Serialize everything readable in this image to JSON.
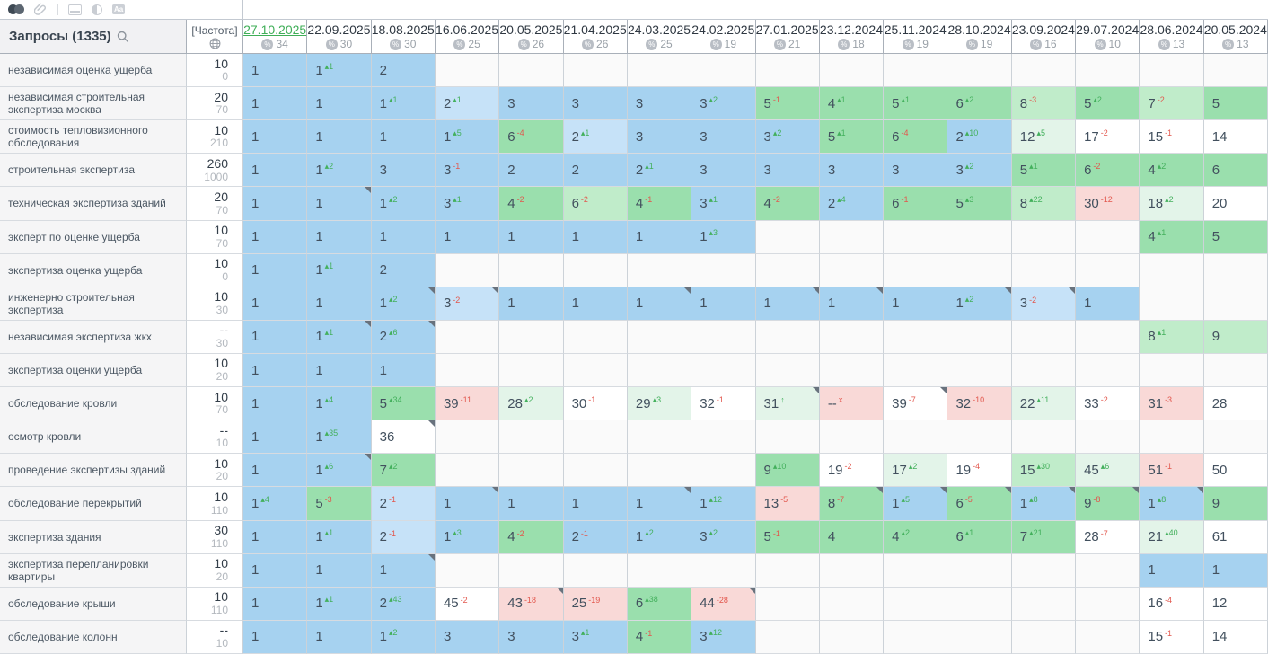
{
  "toolbar": {
    "icons": [
      "projects-toggle-icon",
      "attach-link-icon",
      "divider",
      "snapshot-icon",
      "contrast-icon",
      "font-size-icon"
    ]
  },
  "header": {
    "queries_label": "Запросы",
    "queries_count": "(1335)",
    "frequency_label": "[Частота]",
    "dates": [
      {
        "label": "27.10.2025",
        "percent": "34",
        "selected": true
      },
      {
        "label": "22.09.2025",
        "percent": "30"
      },
      {
        "label": "18.08.2025",
        "percent": "30"
      },
      {
        "label": "16.06.2025",
        "percent": "25"
      },
      {
        "label": "20.05.2025",
        "percent": "26"
      },
      {
        "label": "21.04.2025",
        "percent": "26"
      },
      {
        "label": "24.03.2025",
        "percent": "25"
      },
      {
        "label": "24.02.2025",
        "percent": "19"
      },
      {
        "label": "27.01.2025",
        "percent": "21"
      },
      {
        "label": "23.12.2024",
        "percent": "18"
      },
      {
        "label": "25.11.2024",
        "percent": "19"
      },
      {
        "label": "28.10.2024",
        "percent": "19"
      },
      {
        "label": "23.09.2024",
        "percent": "16"
      },
      {
        "label": "29.07.2024",
        "percent": "10"
      },
      {
        "label": "28.06.2024",
        "percent": "13"
      },
      {
        "label": "20.05.2024",
        "percent": "13"
      }
    ]
  },
  "colors": {
    "selected_date": "#3fae57",
    "delta_up": "#43b05c",
    "delta_down": "#e2574d",
    "cell_bg": {
      "b": "#a6d2f0",
      "bl": "#c6e2f8",
      "g": "#9adfad",
      "gl": "#c0ecca",
      "gx": "#e3f4e9",
      "w": "#ffffff",
      "p": "#f9d9d7",
      "e": "#fafafa"
    }
  },
  "rows": [
    {
      "keyword": "независимая оценка ущерба",
      "freq": [
        "10",
        "0"
      ],
      "cells": [
        [
          "1",
          null,
          "b"
        ],
        [
          "1",
          "+1",
          "b"
        ],
        [
          "2",
          null,
          "b"
        ],
        null,
        null,
        null,
        null,
        null,
        null,
        null,
        null,
        null,
        null,
        null,
        null,
        null
      ]
    },
    {
      "keyword": "независимая строительная экспертиза москва",
      "freq": [
        "20",
        "70"
      ],
      "cells": [
        [
          "1",
          null,
          "b"
        ],
        [
          "1",
          null,
          "b"
        ],
        [
          "1",
          "+1",
          "b"
        ],
        [
          "2",
          "+1",
          "bl"
        ],
        [
          "3",
          null,
          "b"
        ],
        [
          "3",
          null,
          "b"
        ],
        [
          "3",
          null,
          "b"
        ],
        [
          "3",
          "+2",
          "b"
        ],
        [
          "5",
          "-1",
          "g"
        ],
        [
          "4",
          "+1",
          "g"
        ],
        [
          "5",
          "+1",
          "g"
        ],
        [
          "6",
          "+2",
          "g"
        ],
        [
          "8",
          "-3",
          "gl"
        ],
        [
          "5",
          "+2",
          "g"
        ],
        [
          "7",
          "-2",
          "gl"
        ],
        [
          "5",
          null,
          "g"
        ]
      ]
    },
    {
      "keyword": "стоимость тепловизионного обследования",
      "freq": [
        "10",
        "210"
      ],
      "cells": [
        [
          "1",
          null,
          "b"
        ],
        [
          "1",
          null,
          "b"
        ],
        [
          "1",
          null,
          "b"
        ],
        [
          "1",
          "+5",
          "b"
        ],
        [
          "6",
          "-4",
          "g"
        ],
        [
          "2",
          "+1",
          "bl"
        ],
        [
          "3",
          null,
          "b"
        ],
        [
          "3",
          null,
          "b"
        ],
        [
          "3",
          "+2",
          "b"
        ],
        [
          "5",
          "+1",
          "g"
        ],
        [
          "6",
          "-4",
          "g"
        ],
        [
          "2",
          "+10",
          "b"
        ],
        [
          "12",
          "+5",
          "gx"
        ],
        [
          "17",
          "-2",
          "w"
        ],
        [
          "15",
          "-1",
          "w"
        ],
        [
          "14",
          null,
          "w"
        ]
      ]
    },
    {
      "keyword": "строительная экспертиза",
      "freq": [
        "260",
        "1000"
      ],
      "cells": [
        [
          "1",
          null,
          "b"
        ],
        [
          "1",
          "+2",
          "b"
        ],
        [
          "3",
          null,
          "b"
        ],
        [
          "3",
          "-1",
          "b"
        ],
        [
          "2",
          null,
          "b"
        ],
        [
          "2",
          null,
          "b"
        ],
        [
          "2",
          "+1",
          "b"
        ],
        [
          "3",
          null,
          "b"
        ],
        [
          "3",
          null,
          "b"
        ],
        [
          "3",
          null,
          "b"
        ],
        [
          "3",
          null,
          "b"
        ],
        [
          "3",
          "+2",
          "b"
        ],
        [
          "5",
          "+1",
          "g"
        ],
        [
          "6",
          "-2",
          "g"
        ],
        [
          "4",
          "+2",
          "g"
        ],
        [
          "6",
          null,
          "g"
        ]
      ]
    },
    {
      "keyword": "техническая экспертиза зданий",
      "freq": [
        "20",
        "70"
      ],
      "cells": [
        [
          "1",
          null,
          "b"
        ],
        [
          "1",
          null,
          "b",
          1
        ],
        [
          "1",
          "+2",
          "b"
        ],
        [
          "3",
          "+1",
          "b"
        ],
        [
          "4",
          "-2",
          "g"
        ],
        [
          "6",
          "-2",
          "gl"
        ],
        [
          "4",
          "-1",
          "g"
        ],
        [
          "3",
          "+1",
          "b"
        ],
        [
          "4",
          "-2",
          "g"
        ],
        [
          "2",
          "+4",
          "b"
        ],
        [
          "6",
          "-1",
          "g"
        ],
        [
          "5",
          "+3",
          "g"
        ],
        [
          "8",
          "+22",
          "gl"
        ],
        [
          "30",
          "-12",
          "p"
        ],
        [
          "18",
          "+2",
          "gx"
        ],
        [
          "20",
          null,
          "w"
        ]
      ]
    },
    {
      "keyword": "эксперт по оценке ущерба",
      "freq": [
        "10",
        "70"
      ],
      "cells": [
        [
          "1",
          null,
          "b"
        ],
        [
          "1",
          null,
          "b"
        ],
        [
          "1",
          null,
          "b"
        ],
        [
          "1",
          null,
          "b"
        ],
        [
          "1",
          null,
          "b"
        ],
        [
          "1",
          null,
          "b"
        ],
        [
          "1",
          null,
          "b"
        ],
        [
          "1",
          "+3",
          "b"
        ],
        null,
        null,
        null,
        null,
        null,
        null,
        [
          "4",
          "+1",
          "g"
        ],
        [
          "5",
          null,
          "g"
        ]
      ]
    },
    {
      "keyword": "экспертиза оценка ущерба",
      "freq": [
        "10",
        "0"
      ],
      "cells": [
        [
          "1",
          null,
          "b"
        ],
        [
          "1",
          "+1",
          "b"
        ],
        [
          "2",
          null,
          "b"
        ],
        null,
        null,
        null,
        null,
        null,
        null,
        null,
        null,
        null,
        null,
        null,
        null,
        null
      ]
    },
    {
      "keyword": "инженерно строительная экспертиза",
      "freq": [
        "10",
        "30"
      ],
      "cells": [
        [
          "1",
          null,
          "b"
        ],
        [
          "1",
          null,
          "b"
        ],
        [
          "1",
          "+2",
          "b",
          1
        ],
        [
          "3",
          "-2",
          "bl",
          1
        ],
        [
          "1",
          null,
          "b"
        ],
        [
          "1",
          null,
          "b"
        ],
        [
          "1",
          null,
          "b",
          1
        ],
        [
          "1",
          null,
          "b"
        ],
        [
          "1",
          null,
          "b",
          1
        ],
        [
          "1",
          null,
          "b",
          1
        ],
        [
          "1",
          null,
          "b"
        ],
        [
          "1",
          "+2",
          "b",
          1
        ],
        [
          "3",
          "-2",
          "bl",
          1
        ],
        [
          "1",
          null,
          "b"
        ],
        null,
        null
      ]
    },
    {
      "keyword": "независимая экспертиза жкх",
      "freq": [
        "--",
        "30"
      ],
      "cells": [
        [
          "1",
          null,
          "b"
        ],
        [
          "1",
          "+1",
          "b",
          1
        ],
        [
          "2",
          "+6",
          "b",
          1
        ],
        null,
        null,
        null,
        null,
        null,
        null,
        null,
        null,
        null,
        null,
        null,
        [
          "8",
          "+1",
          "gl"
        ],
        [
          "9",
          null,
          "gl"
        ]
      ]
    },
    {
      "keyword": "экспертиза оценки ущерба",
      "freq": [
        "10",
        "20"
      ],
      "cells": [
        [
          "1",
          null,
          "b"
        ],
        [
          "1",
          null,
          "b"
        ],
        [
          "1",
          null,
          "b"
        ],
        null,
        null,
        null,
        null,
        null,
        null,
        null,
        null,
        null,
        null,
        null,
        null,
        null
      ]
    },
    {
      "keyword": "обследование кровли",
      "freq": [
        "10",
        "70"
      ],
      "cells": [
        [
          "1",
          null,
          "b"
        ],
        [
          "1",
          "+4",
          "b"
        ],
        [
          "5",
          "+34",
          "g"
        ],
        [
          "39",
          "-11",
          "p"
        ],
        [
          "28",
          "+2",
          "gx"
        ],
        [
          "30",
          "-1",
          "w"
        ],
        [
          "29",
          "+3",
          "gx"
        ],
        [
          "32",
          "-1",
          "w"
        ],
        [
          "31",
          "up",
          "gx",
          1
        ],
        [
          "--",
          "x",
          "p"
        ],
        [
          "39",
          "-7",
          "w",
          1
        ],
        [
          "32",
          "-10",
          "p"
        ],
        [
          "22",
          "+11",
          "gx"
        ],
        [
          "33",
          "-2",
          "w"
        ],
        [
          "31",
          "-3",
          "p"
        ],
        [
          "28",
          null,
          "w"
        ]
      ]
    },
    {
      "keyword": "осмотр кровли",
      "freq": [
        "--",
        "10"
      ],
      "cells": [
        [
          "1",
          null,
          "b"
        ],
        [
          "1",
          "+35",
          "b"
        ],
        [
          "36",
          null,
          "w",
          1
        ],
        null,
        null,
        null,
        null,
        null,
        null,
        null,
        null,
        null,
        null,
        null,
        null,
        null
      ]
    },
    {
      "keyword": "проведение экспертизы зданий",
      "freq": [
        "10",
        "20"
      ],
      "cells": [
        [
          "1",
          null,
          "b"
        ],
        [
          "1",
          "+6",
          "b",
          1
        ],
        [
          "7",
          "+2",
          "g"
        ],
        null,
        null,
        null,
        null,
        null,
        [
          "9",
          "+10",
          "g"
        ],
        [
          "19",
          "-2",
          "w"
        ],
        [
          "17",
          "+2",
          "gx"
        ],
        [
          "19",
          "-4",
          "w"
        ],
        [
          "15",
          "+30",
          "gl"
        ],
        [
          "45",
          "+6",
          "gx"
        ],
        [
          "51",
          "-1",
          "p"
        ],
        [
          "50",
          null,
          "w"
        ]
      ]
    },
    {
      "keyword": "обследование перекрытий",
      "freq": [
        "10",
        "110"
      ],
      "cells": [
        [
          "1",
          "+4",
          "b"
        ],
        [
          "5",
          "-3",
          "g"
        ],
        [
          "2",
          "-1",
          "bl"
        ],
        [
          "1",
          null,
          "b",
          1
        ],
        [
          "1",
          null,
          "b"
        ],
        [
          "1",
          null,
          "b"
        ],
        [
          "1",
          null,
          "b",
          1
        ],
        [
          "1",
          "+12",
          "b"
        ],
        [
          "13",
          "-5",
          "p"
        ],
        [
          "8",
          "-7",
          "g",
          1
        ],
        [
          "1",
          "+5",
          "b",
          1
        ],
        [
          "6",
          "-5",
          "g",
          1
        ],
        [
          "1",
          "+8",
          "b",
          1
        ],
        [
          "9",
          "-8",
          "g",
          1
        ],
        [
          "1",
          "+8",
          "b",
          1
        ],
        [
          "9",
          null,
          "g"
        ]
      ]
    },
    {
      "keyword": "экспертиза здания",
      "freq": [
        "30",
        "110"
      ],
      "cells": [
        [
          "1",
          null,
          "b"
        ],
        [
          "1",
          "+1",
          "b"
        ],
        [
          "2",
          "-1",
          "bl"
        ],
        [
          "1",
          "+3",
          "b"
        ],
        [
          "4",
          "-2",
          "g"
        ],
        [
          "2",
          "-1",
          "b"
        ],
        [
          "1",
          "+2",
          "b"
        ],
        [
          "3",
          "+2",
          "b"
        ],
        [
          "5",
          "-1",
          "g"
        ],
        [
          "4",
          null,
          "g"
        ],
        [
          "4",
          "+2",
          "g"
        ],
        [
          "6",
          "+1",
          "g"
        ],
        [
          "7",
          "+21",
          "g"
        ],
        [
          "28",
          "-7",
          "w"
        ],
        [
          "21",
          "+40",
          "gx"
        ],
        [
          "61",
          null,
          "w"
        ]
      ]
    },
    {
      "keyword": "экспертиза перепланировки квартиры",
      "freq": [
        "10",
        "20"
      ],
      "cells": [
        [
          "1",
          null,
          "b"
        ],
        [
          "1",
          null,
          "b"
        ],
        [
          "1",
          null,
          "b",
          1
        ],
        null,
        null,
        null,
        null,
        null,
        null,
        null,
        null,
        null,
        null,
        null,
        [
          "1",
          null,
          "b"
        ],
        [
          "1",
          null,
          "b"
        ]
      ]
    },
    {
      "keyword": "обследование крыши",
      "freq": [
        "10",
        "110"
      ],
      "cells": [
        [
          "1",
          null,
          "b"
        ],
        [
          "1",
          "+1",
          "b"
        ],
        [
          "2",
          "+43",
          "b"
        ],
        [
          "45",
          "-2",
          "w"
        ],
        [
          "43",
          "-18",
          "p",
          1
        ],
        [
          "25",
          "-19",
          "p"
        ],
        [
          "6",
          "+38",
          "g"
        ],
        [
          "44",
          "-28",
          "p",
          1
        ],
        null,
        null,
        null,
        null,
        null,
        null,
        [
          "16",
          "-4",
          "w"
        ],
        [
          "12",
          null,
          "w"
        ]
      ]
    },
    {
      "keyword": "обследование колонн",
      "freq": [
        "--",
        "10"
      ],
      "cells": [
        [
          "1",
          null,
          "b"
        ],
        [
          "1",
          null,
          "b"
        ],
        [
          "1",
          "+2",
          "b"
        ],
        [
          "3",
          null,
          "b"
        ],
        [
          "3",
          null,
          "b"
        ],
        [
          "3",
          "+1",
          "b"
        ],
        [
          "4",
          "-1",
          "g"
        ],
        [
          "3",
          "+12",
          "b"
        ],
        null,
        null,
        null,
        null,
        null,
        null,
        [
          "15",
          "-1",
          "w"
        ],
        [
          "14",
          null,
          "w"
        ]
      ]
    }
  ]
}
